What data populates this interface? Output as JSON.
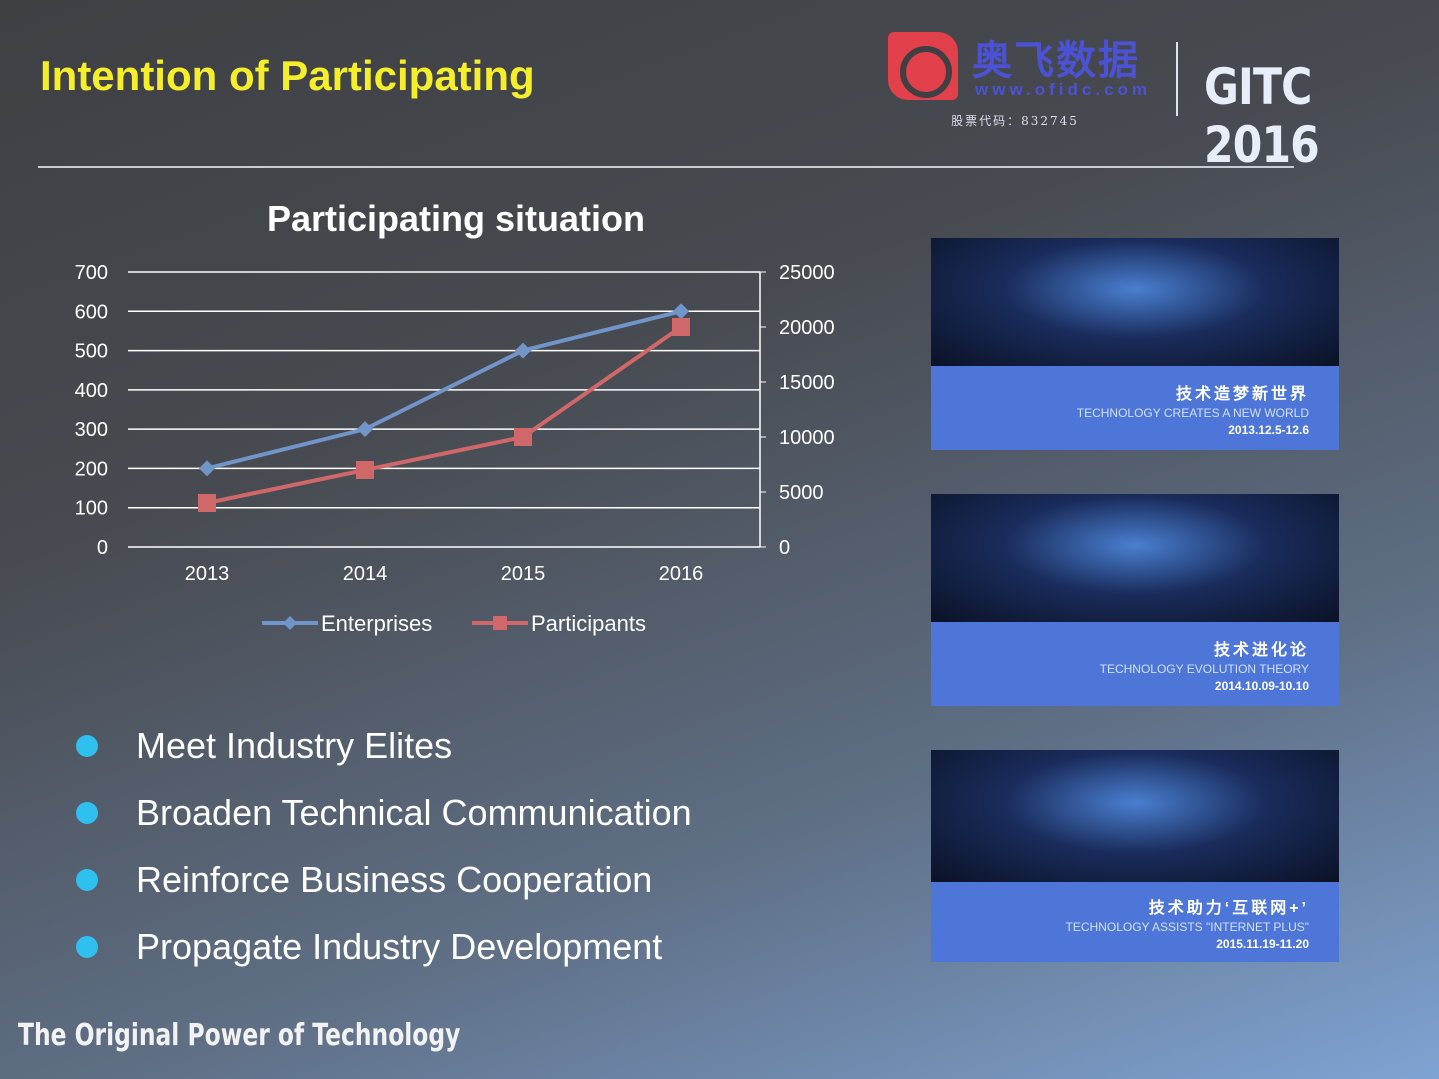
{
  "slide": {
    "title": "Intention of Participating",
    "footer": "The  Original Power  of  Technology"
  },
  "logo": {
    "cn": "奥飞数据",
    "url": "www.ofidc.com",
    "stock": "股票代码：832745",
    "event": "GITC 2016"
  },
  "chart_data": {
    "type": "line",
    "title": "Participating situation",
    "categories": [
      "2013",
      "2014",
      "2015",
      "2016"
    ],
    "y_left": {
      "ticks": [
        "0",
        "100",
        "200",
        "300",
        "400",
        "500",
        "600",
        "700"
      ],
      "ylim": [
        0,
        700
      ]
    },
    "y_right": {
      "ticks": [
        "0",
        "5000",
        "10000",
        "15000",
        "20000",
        "25000"
      ],
      "ylim": [
        0,
        25000
      ]
    },
    "grid": true,
    "legend": "bottom",
    "series": [
      {
        "name": "Enterprises",
        "axis": "left",
        "values": [
          200,
          300,
          500,
          600
        ],
        "color": "#7295c9",
        "marker": "diamond"
      },
      {
        "name": "Participants",
        "axis": "right",
        "values": [
          4000,
          7000,
          10000,
          20000
        ],
        "color": "#d0686a",
        "marker": "square"
      }
    ]
  },
  "bullets": [
    "Meet Industry Elites",
    "Broaden Technical  Communication",
    "Reinforce  Business  Cooperation",
    "Propagate  Industry  Development"
  ],
  "photos": [
    {
      "cn": "技术造梦新世界",
      "en": "TECHNOLOGY CREATES A NEW WORLD",
      "date": "2013.12.5-12.6"
    },
    {
      "cn": "技术进化论",
      "en": "TECHNOLOGY EVOLUTION THEORY",
      "date": "2014.10.09-10.10"
    },
    {
      "cn": "技术助力‘互联网+’",
      "en": "TECHNOLOGY ASSISTS \"INTERNET PLUS\"",
      "date": "2015.11.19-11.20"
    }
  ]
}
